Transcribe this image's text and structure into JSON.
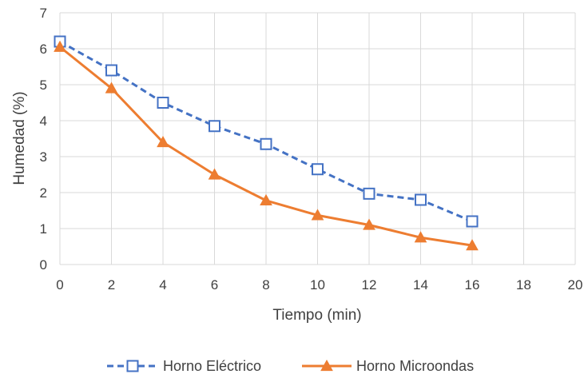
{
  "chart_data": {
    "type": "line",
    "xlabel": "Tiempo  (min)",
    "ylabel": "Humedad (%)",
    "xlim": [
      0,
      20
    ],
    "ylim": [
      0,
      7
    ],
    "xticks": [
      0,
      2,
      4,
      6,
      8,
      10,
      12,
      14,
      16,
      18,
      20
    ],
    "yticks": [
      0,
      1,
      2,
      3,
      4,
      5,
      6,
      7
    ],
    "grid": true,
    "legend_position": "bottom",
    "series": [
      {
        "name": "Horno Eléctrico",
        "color": "#4472c4",
        "line_style": "dashed",
        "marker": "open-square",
        "x": [
          0,
          2,
          4,
          6,
          8,
          10,
          12,
          14,
          16
        ],
        "y": [
          6.2,
          5.4,
          4.5,
          3.85,
          3.35,
          2.65,
          1.97,
          1.8,
          1.2
        ]
      },
      {
        "name": "Horno Microondas",
        "color": "#ed7d31",
        "line_style": "solid",
        "marker": "filled-triangle",
        "x": [
          0,
          2,
          4,
          6,
          8,
          10,
          12,
          14,
          16
        ],
        "y": [
          6.05,
          4.9,
          3.4,
          2.5,
          1.78,
          1.37,
          1.1,
          0.75,
          0.53
        ]
      }
    ]
  }
}
